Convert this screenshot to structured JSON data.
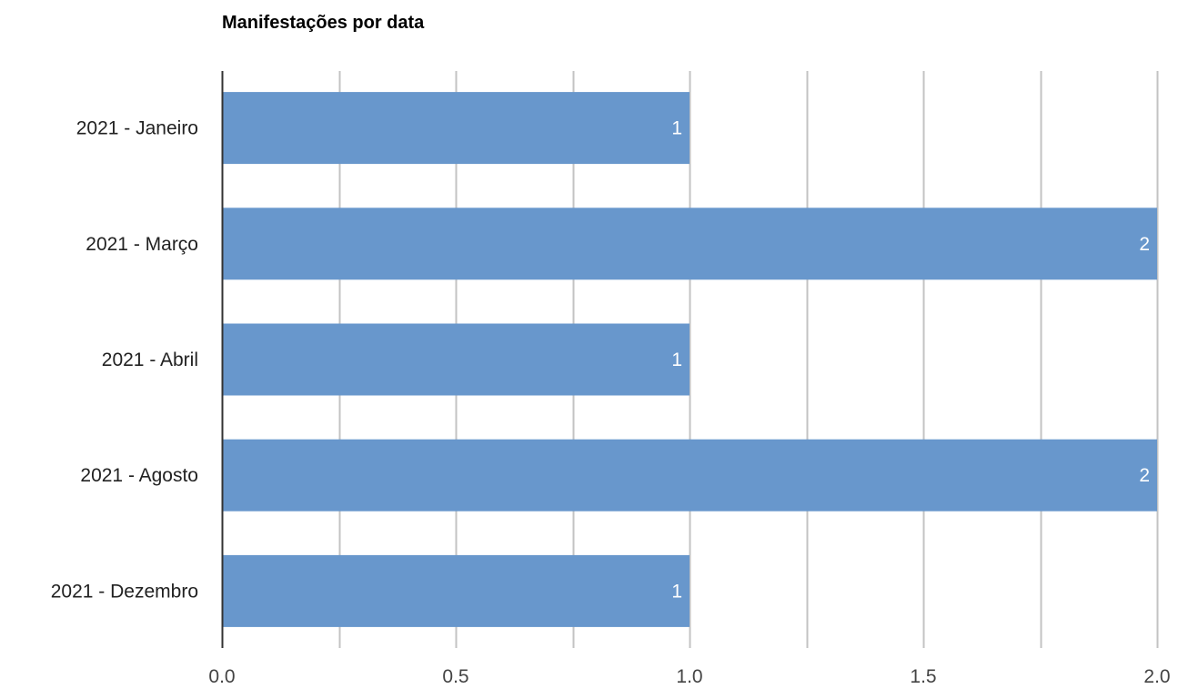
{
  "chart_data": {
    "type": "bar",
    "orientation": "horizontal",
    "title": "Manifestações por data",
    "categories": [
      "2021 - Janeiro",
      "2021 - Março",
      "2021 - Abril",
      "2021 - Agosto",
      "2021 - Dezembro"
    ],
    "values": [
      1,
      2,
      1,
      2,
      1
    ],
    "data_labels": [
      "1",
      "2",
      "1",
      "2",
      "1"
    ],
    "x_ticks": [
      "0.0",
      "0.5",
      "1.0",
      "1.5",
      "2.0"
    ],
    "xlim": [
      0,
      2
    ],
    "minor_gridlines": true,
    "grid": true,
    "legend": "none",
    "bar_color": "#6897cc",
    "gridline_color": "#c3c3c3",
    "axis_color": "#333333"
  }
}
